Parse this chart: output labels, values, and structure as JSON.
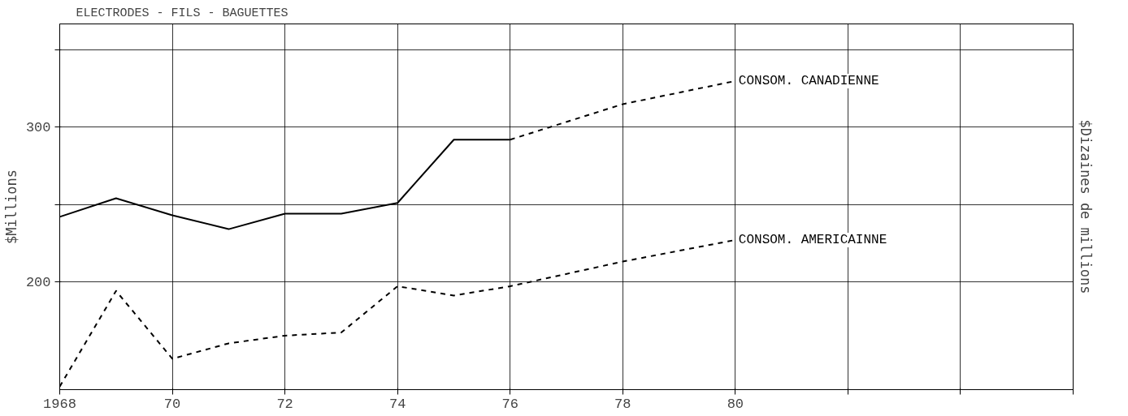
{
  "chart_data": {
    "type": "line",
    "title": "ELECTRODES - FILS - BAGUETTES",
    "ylabel": "$Millions",
    "y2label": "$Dizaines de millions",
    "xlim": [
      1968,
      1986
    ],
    "xticks": [
      {
        "value": 1968,
        "label": "1968"
      },
      {
        "value": 1970,
        "label": "70"
      },
      {
        "value": 1972,
        "label": "72"
      },
      {
        "value": 1974,
        "label": "74"
      },
      {
        "value": 1976,
        "label": "76"
      },
      {
        "value": 1978,
        "label": "78"
      },
      {
        "value": 1980,
        "label": "80"
      },
      {
        "value": 1982,
        "label": null
      },
      {
        "value": 1984,
        "label": null
      },
      {
        "value": 1986,
        "label": null
      }
    ],
    "ylim": [
      130,
      367
    ],
    "yticks": [
      200,
      {
        "value": 250,
        "label": null
      },
      300,
      {
        "value": 350,
        "label": null
      }
    ],
    "grid": true,
    "marker": "none",
    "series": [
      {
        "color": "#000000",
        "line_style": "solid",
        "x": [
          1968,
          1969,
          1970,
          1971,
          1972,
          1973,
          1974,
          1975,
          1976
        ],
        "values": [
          242,
          254,
          243,
          234,
          244,
          244,
          251,
          292,
          292
        ]
      },
      {
        "name": "CONSOM. CANADIENNE",
        "color": "#000000",
        "line_style": "dashed",
        "x": [
          1976,
          1978,
          1980
        ],
        "values": [
          292,
          315,
          330
        ]
      },
      {
        "name": "CONSOM. AMERICAINNE",
        "color": "#000000",
        "line_style": "dashed",
        "x": [
          1968,
          1969,
          1970,
          1971,
          1972,
          1973,
          1974,
          1975,
          1976,
          1978,
          1980
        ],
        "values": [
          132,
          194,
          150,
          160,
          165,
          167,
          197,
          191,
          197,
          213,
          227
        ]
      }
    ]
  }
}
